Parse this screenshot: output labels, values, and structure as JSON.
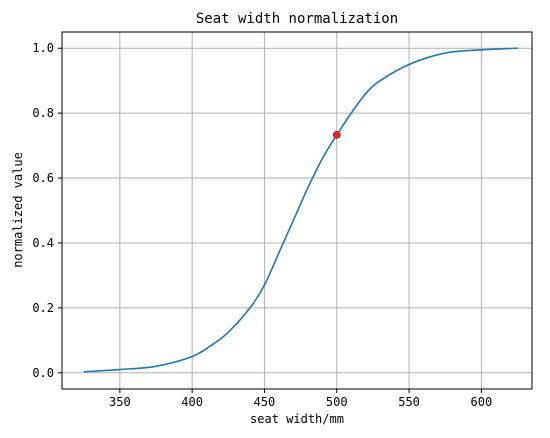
{
  "chart_data": {
    "type": "line",
    "title": "Seat width normalization",
    "xlabel": "seat width/mm",
    "ylabel": "normalized value",
    "xlim": [
      310,
      635
    ],
    "ylim": [
      -0.05,
      1.05
    ],
    "xticks": [
      350,
      400,
      450,
      500,
      550,
      600
    ],
    "xtick_labels": [
      "350",
      "400",
      "450",
      "500",
      "550",
      "600"
    ],
    "yticks": [
      0.0,
      0.2,
      0.4,
      0.6,
      0.8,
      1.0
    ],
    "ytick_labels": [
      "0.0",
      "0.2",
      "0.4",
      "0.6",
      "0.8",
      "1.0"
    ],
    "grid": true,
    "series": [
      {
        "color": "#1f77b4",
        "x": [
          325,
          350,
          375,
          400,
          415,
          425,
          440,
          450,
          460,
          470,
          475,
          480,
          490,
          500,
          510,
          520,
          530,
          550,
          575,
          600,
          625
        ],
        "y": [
          0.003,
          0.01,
          0.02,
          0.05,
          0.09,
          0.125,
          0.2,
          0.27,
          0.37,
          0.47,
          0.52,
          0.57,
          0.66,
          0.733,
          0.8,
          0.86,
          0.9,
          0.95,
          0.985,
          0.995,
          1.0
        ]
      }
    ],
    "highlight_point": {
      "x": 500,
      "y": 0.733,
      "color": "#d62728"
    }
  }
}
